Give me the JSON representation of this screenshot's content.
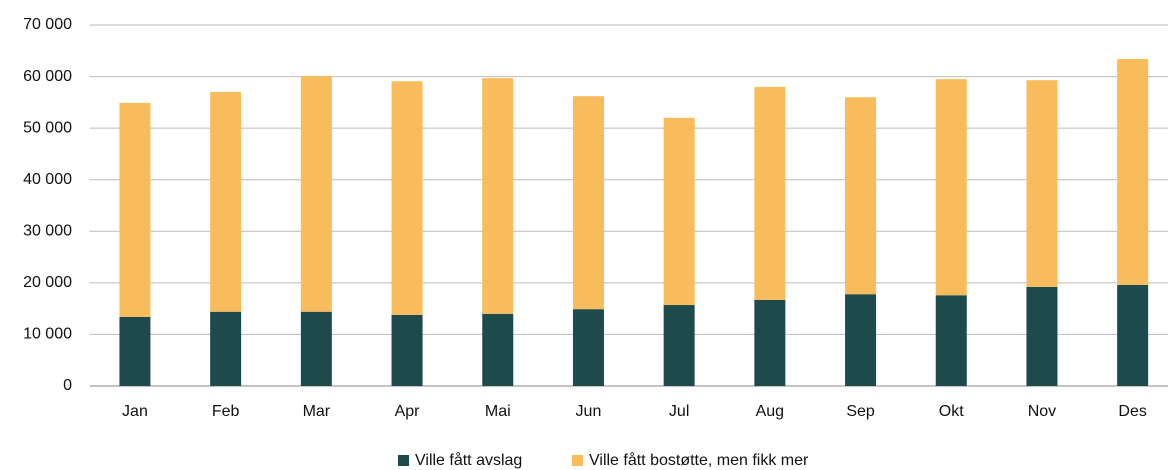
{
  "chart_data": {
    "type": "stacked_bar",
    "categories": [
      "Jan",
      "Feb",
      "Mar",
      "Apr",
      "Mai",
      "Jun",
      "Jul",
      "Aug",
      "Sep",
      "Okt",
      "Nov",
      "Des"
    ],
    "series": [
      {
        "name": "Ville fått avslag",
        "color": "#1f4a4b",
        "values": [
          13400,
          14400,
          14400,
          13800,
          14000,
          14900,
          15700,
          16700,
          17800,
          17600,
          19200,
          19600
        ]
      },
      {
        "name": "Ville fått bostøtte, men fikk mer",
        "color": "#f9bc5d",
        "values": [
          41500,
          42600,
          45700,
          45300,
          45700,
          41300,
          36300,
          41300,
          38200,
          41900,
          40100,
          43800
        ]
      }
    ],
    "ylim": [
      0,
      70000
    ],
    "yticks": [
      0,
      {
        "value": 10000,
        "label": "10 000"
      },
      {
        "value": 20000,
        "label": "20 000"
      },
      {
        "value": 30000,
        "label": "30 000"
      },
      {
        "value": 40000,
        "label": "40 000"
      },
      {
        "value": 50000,
        "label": "50 000"
      },
      {
        "value": 60000,
        "label": "60 000"
      },
      {
        "value": 70000,
        "label": "70 000"
      }
    ],
    "grid": true,
    "legend": "bottom"
  }
}
